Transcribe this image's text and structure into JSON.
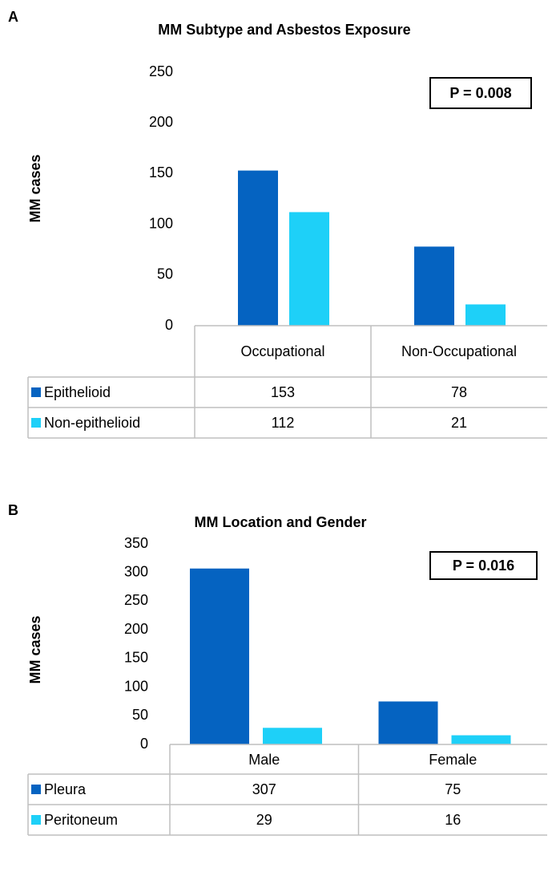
{
  "chart_data": [
    {
      "type": "bar",
      "panel": "A",
      "title": "MM Subtype and Asbestos Exposure",
      "y_label": "MM cases",
      "annotation": "P = 0.008",
      "categories": [
        "Occupational",
        "Non-Occupational"
      ],
      "series": [
        {
          "name": "Epithelioid",
          "color": "#0563c1",
          "values": [
            153,
            78
          ]
        },
        {
          "name": "Non-epithelioid",
          "color": "#1ed0f8",
          "values": [
            112,
            21
          ]
        }
      ],
      "ylim": [
        0,
        250
      ],
      "yticks": [
        0,
        50,
        100,
        150,
        200,
        250
      ],
      "grid": false
    },
    {
      "type": "bar",
      "panel": "B",
      "title": "MM Location and Gender",
      "y_label": "MM cases",
      "annotation": "P = 0.016",
      "categories": [
        "Male",
        "Female"
      ],
      "series": [
        {
          "name": "Pleura",
          "color": "#0563c1",
          "values": [
            307,
            75
          ]
        },
        {
          "name": "Peritoneum",
          "color": "#1ed0f8",
          "values": [
            29,
            16
          ]
        }
      ],
      "ylim": [
        0,
        350
      ],
      "yticks": [
        0,
        50,
        100,
        150,
        200,
        250,
        300,
        350
      ],
      "grid": false
    }
  ]
}
